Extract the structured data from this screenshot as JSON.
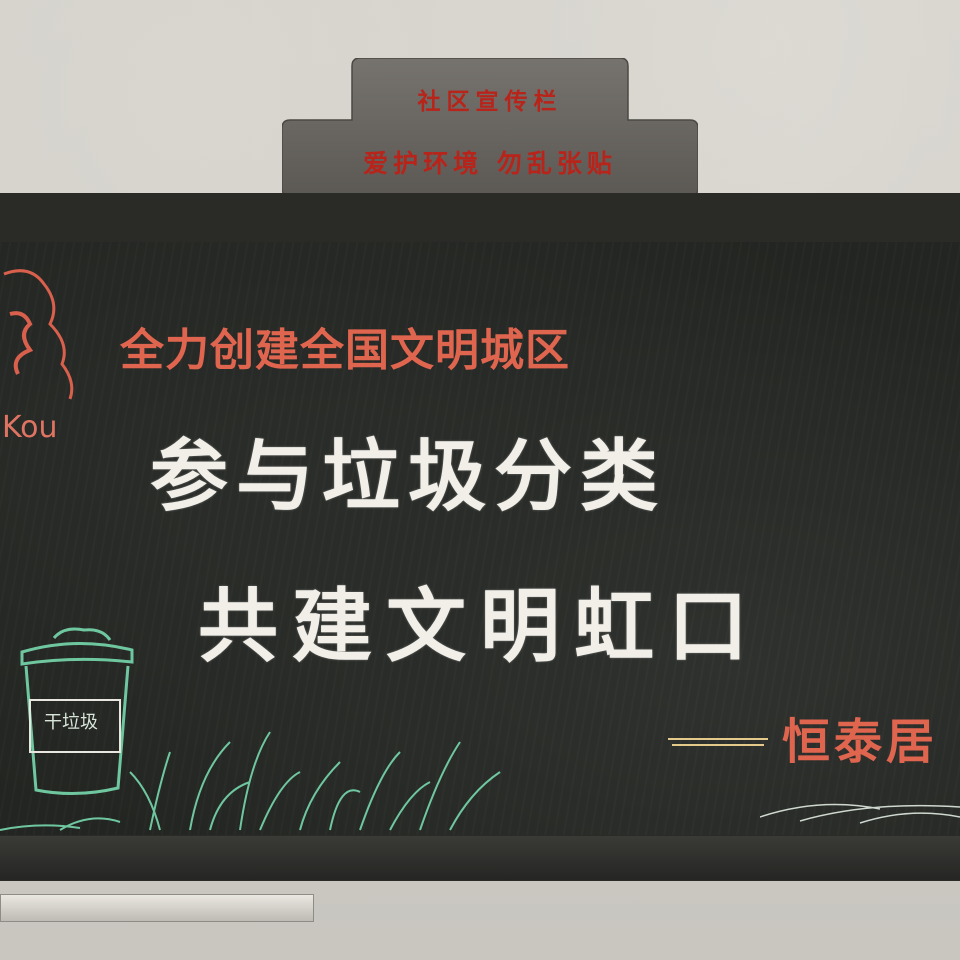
{
  "plaque": {
    "title": "社区宣传栏",
    "subtitle": "爱护环境 勿乱张贴"
  },
  "board": {
    "slogan": "全力创建全国文明城区",
    "headline_line1": "参与垃圾分类",
    "headline_line2": "共建文明虹口",
    "signature": "恒泰居",
    "logo_text": "Kou",
    "bin_label": "干垃圾"
  },
  "colors": {
    "chalk_red": "#e0654f",
    "chalk_white": "#f1efe8",
    "chalk_green": "#6fc7a0",
    "plaque_text": "#b8231a",
    "blackboard": "#232522"
  }
}
